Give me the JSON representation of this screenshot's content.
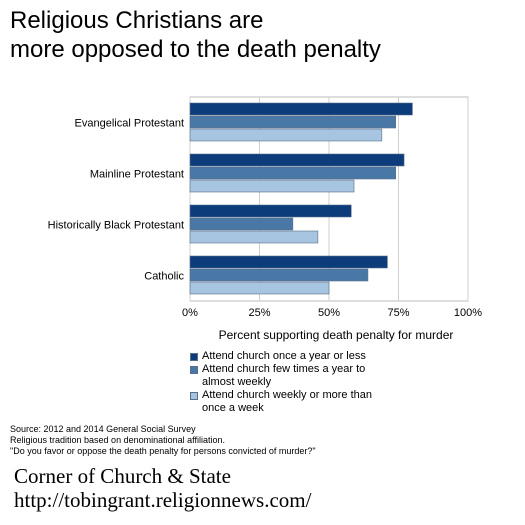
{
  "title_lines": [
    "Religious Christians are",
    "more opposed to the death penalty"
  ],
  "chart_data": {
    "type": "bar",
    "orientation": "horizontal",
    "categories": [
      "Evangelical Protestant",
      "Mainline Protestant",
      "Historically Black Protestant",
      "Catholic"
    ],
    "series": [
      {
        "name": "Attend church once a year or less",
        "color": "#0d3c7a",
        "values": [
          80,
          77,
          58,
          71
        ]
      },
      {
        "name": "Attend church few times a year to almost weekly",
        "color": "#4a78a6",
        "values": [
          74,
          74,
          37,
          64
        ]
      },
      {
        "name": "Attend church weekly or more than once a week",
        "color": "#a7c4e0",
        "values": [
          69,
          59,
          46,
          50
        ]
      }
    ],
    "xlim": [
      0,
      100
    ],
    "xticks": [
      "0%",
      "25%",
      "50%",
      "75%",
      "100%"
    ],
    "xlabel": "Percent supporting death penalty for murder",
    "grid": true,
    "legend_position": "bottom"
  },
  "legend_labels": [
    "Attend church once a year or less",
    "Attend church few times a year to almost weekly",
    "Attend church weekly or more than once a week"
  ],
  "source_lines": [
    "Source: 2012 and 2014 General Social Survey",
    "Religious tradition based on denominational affiliation.",
    "\"Do you favor or oppose the death penalty for persons convicted of murder?\""
  ],
  "footer_line1": "Corner of Church & State",
  "footer_line2": "http://tobingrant.religionnews.com/"
}
